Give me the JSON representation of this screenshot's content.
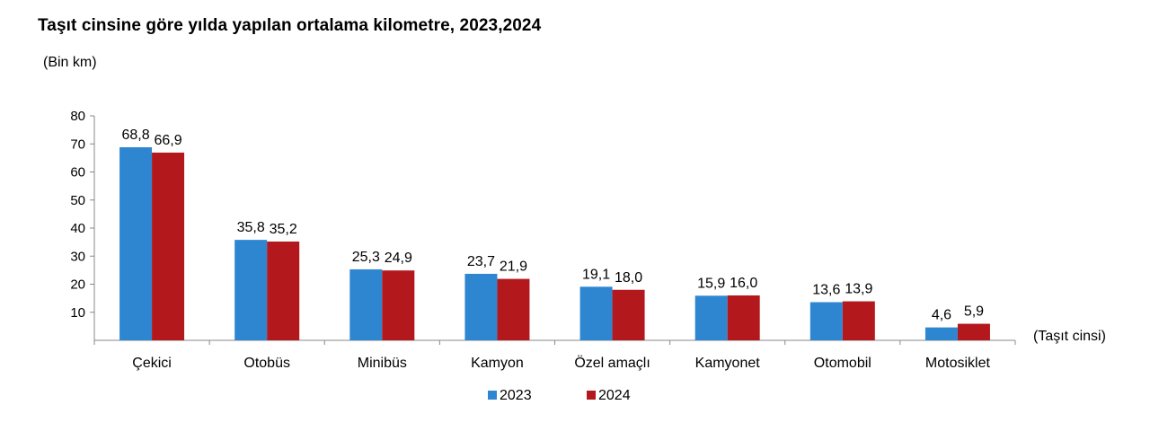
{
  "chart_data": {
    "type": "bar",
    "title": "Taşıt cinsine göre yılda yapılan ortalama kilometre, 2023,2024",
    "ylabel": "(Bin km)",
    "xlabel": "(Taşıt cinsi)",
    "categories": [
      "Çekici",
      "Otobüs",
      "Minibüs",
      "Kamyon",
      "Özel amaçlı",
      "Kamyonet",
      "Otomobil",
      "Motosiklet"
    ],
    "series": [
      {
        "name": "2023",
        "color": "#2e86d1",
        "values": [
          68.8,
          35.8,
          25.3,
          23.7,
          19.1,
          15.9,
          13.6,
          4.6
        ],
        "labels": [
          "68,8",
          "35,8",
          "25,3",
          "23,7",
          "19,1",
          "15,9",
          "13,6",
          "4,6"
        ]
      },
      {
        "name": "2024",
        "color": "#b3181d",
        "values": [
          66.9,
          35.2,
          24.9,
          21.9,
          18.0,
          16.0,
          13.9,
          5.9
        ],
        "labels": [
          "66,9",
          "35,2",
          "24,9",
          "21,9",
          "18,0",
          "16,0",
          "13,9",
          "5,9"
        ]
      }
    ],
    "yticks": [
      10,
      20,
      30,
      40,
      50,
      60,
      70,
      80
    ],
    "ylim": [
      0,
      80
    ],
    "grid": false,
    "legend_position": "bottom"
  }
}
